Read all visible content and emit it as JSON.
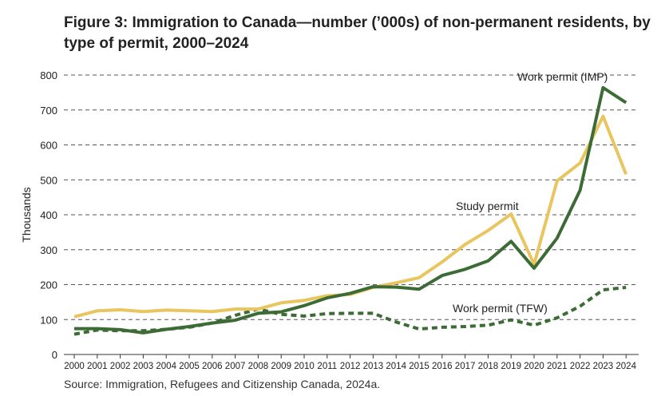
{
  "chart_data": {
    "type": "line",
    "title": "Figure 3: Immigration to Canada—number (’000s) of non-permanent residents, by type of permit, 2000–2024",
    "ylabel": "Thousands",
    "xlabel": "",
    "source": "Source: Immigration, Refugees and Citizenship Canada, 2024a.",
    "ylim": [
      0,
      800
    ],
    "yticks": [
      0,
      100,
      200,
      300,
      400,
      500,
      600,
      700,
      800
    ],
    "grid": "horizontal dashed",
    "legend": "inline labels",
    "x": [
      "2000",
      "2001",
      "2002",
      "2003",
      "2004",
      "2005",
      "2006",
      "2007",
      "2008",
      "2009",
      "2010",
      "2011",
      "2012",
      "2013",
      "2014",
      "2015",
      "2016",
      "2017",
      "2018",
      "2019",
      "2020",
      "2021",
      "2022",
      "2023",
      "2024"
    ],
    "series": [
      {
        "name": "Study permit",
        "color": "#e8c55e",
        "style": "solid",
        "values": [
          108,
          125,
          128,
          123,
          127,
          125,
          123,
          130,
          130,
          148,
          155,
          168,
          172,
          192,
          205,
          220,
          265,
          315,
          355,
          402,
          258,
          497,
          548,
          682,
          516
        ]
      },
      {
        "name": "Work permit (IMP)",
        "color": "#3d6b35",
        "style": "solid",
        "values": [
          74,
          74,
          71,
          62,
          72,
          80,
          90,
          98,
          118,
          122,
          140,
          162,
          175,
          194,
          193,
          187,
          226,
          244,
          268,
          324,
          247,
          333,
          470,
          764,
          721
        ]
      },
      {
        "name": "Work permit (TFW)",
        "color": "#3d6b35",
        "style": "dashed",
        "values": [
          58,
          70,
          68,
          68,
          72,
          78,
          90,
          112,
          130,
          115,
          110,
          117,
          118,
          118,
          93,
          73,
          78,
          80,
          84,
          99,
          84,
          105,
          138,
          185,
          192
        ]
      }
    ]
  }
}
